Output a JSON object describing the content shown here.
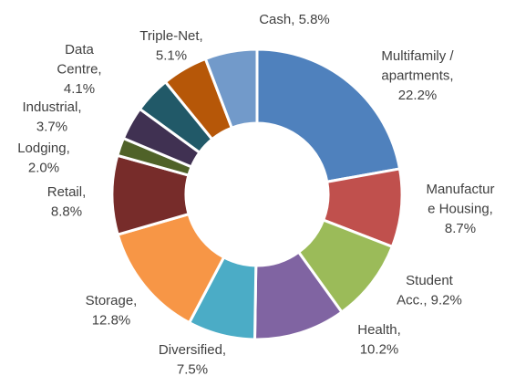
{
  "chart_data": {
    "type": "donut",
    "labels": [
      [
        "Multifamily /",
        "apartments,",
        "22.2%"
      ],
      [
        "Manufactur",
        "e Housing,",
        "8.7%"
      ],
      [
        "Student",
        "Acc., 9.2%"
      ],
      [
        "Health,",
        "10.2%"
      ],
      [
        "Diversified,",
        "7.5%"
      ],
      [
        "Storage,",
        "12.8%"
      ],
      [
        "Retail,",
        "8.8%"
      ],
      [
        "Lodging,",
        "2.0%"
      ],
      [
        "Industrial,",
        "3.7%"
      ],
      [
        "Data",
        "Centre,",
        "4.1%"
      ],
      [
        "Triple-Net,",
        "5.1%"
      ],
      [
        "Cash, 5.8%"
      ]
    ],
    "values": [
      22.2,
      8.7,
      9.2,
      10.2,
      7.5,
      12.8,
      8.8,
      2.0,
      3.7,
      4.1,
      5.1,
      5.8
    ],
    "colors": [
      "#4f81bd",
      "#c0504d",
      "#9bbb59",
      "#8064a2",
      "#4bacc6",
      "#f79646",
      "#772c2a",
      "#4f6228",
      "#403152",
      "#215968",
      "#b65708",
      "#729aca"
    ]
  }
}
